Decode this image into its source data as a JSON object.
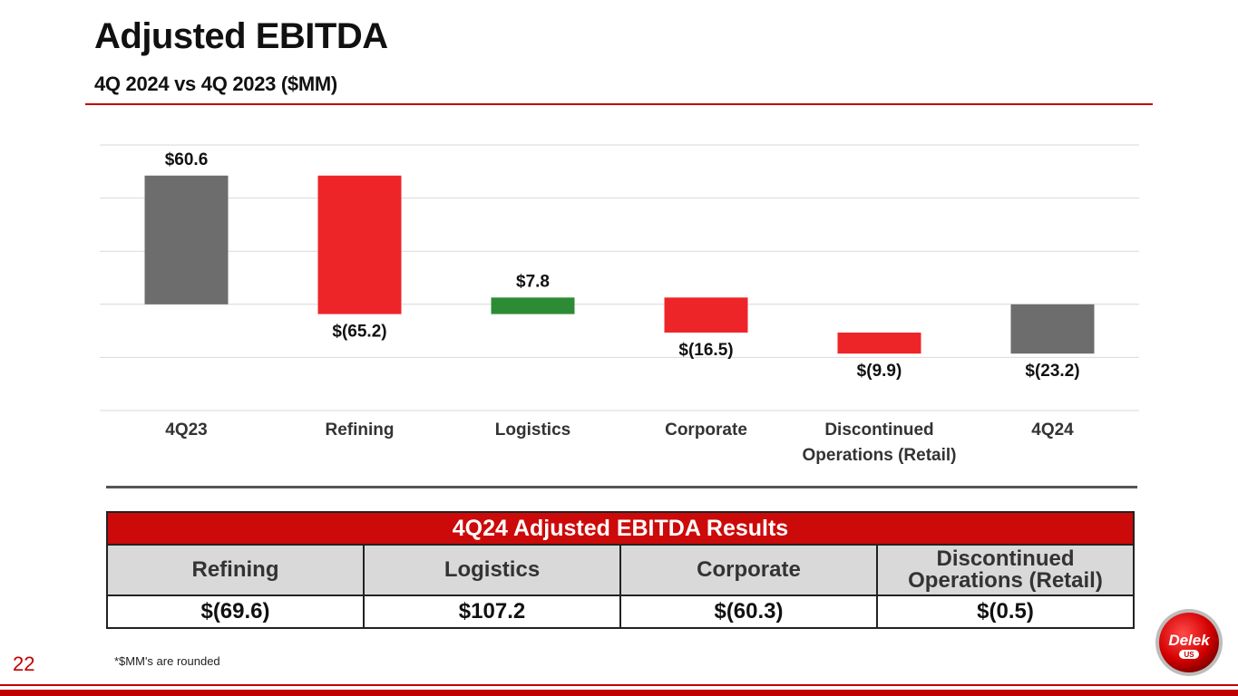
{
  "header": {
    "title": "Adjusted EBITDA",
    "subtitle": "4Q 2024 vs 4Q 2023 ($MM)"
  },
  "chart_data": {
    "type": "bar",
    "subtype": "waterfall",
    "categories": [
      "4Q23",
      "Refining",
      "Logistics",
      "Corporate",
      "Discontinued Operations (Retail)",
      "4Q24"
    ],
    "category_lines": [
      [
        "4Q23"
      ],
      [
        "Refining"
      ],
      [
        "Logistics"
      ],
      [
        "Corporate"
      ],
      [
        "Discontinued",
        "Operations (Retail)"
      ],
      [
        "4Q24"
      ]
    ],
    "values": [
      60.6,
      -65.2,
      7.8,
      -16.5,
      -9.9,
      -23.2
    ],
    "kinds": [
      "total",
      "change",
      "change",
      "change",
      "change",
      "total"
    ],
    "data_labels": [
      "$60.6",
      "$(65.2)",
      "$7.8",
      "$(16.5)",
      "$(9.9)",
      "$(23.2)"
    ],
    "ylim": [
      -50,
      75
    ],
    "grid": true,
    "colors": {
      "total": "#6d6d6d",
      "decrease": "#ee2528",
      "increase": "#2e8b35",
      "grid": "#d9d9d9"
    }
  },
  "results_table": {
    "title": "4Q24 Adjusted EBITDA Results",
    "columns": [
      "Refining",
      "Logistics",
      "Corporate",
      "Discontinued Operations (Retail)"
    ],
    "values": [
      "$(69.6)",
      "$107.2",
      "$(60.3)",
      "$(0.5)"
    ]
  },
  "footer": {
    "page_number": "22",
    "footnote": "*$MM's are rounded",
    "logo_text_main": "Delek",
    "logo_text_sub": "US"
  },
  "colors": {
    "brand_red": "#c00000",
    "table_header": "#cc0a0a",
    "table_col_header": "#d9d9d9"
  }
}
